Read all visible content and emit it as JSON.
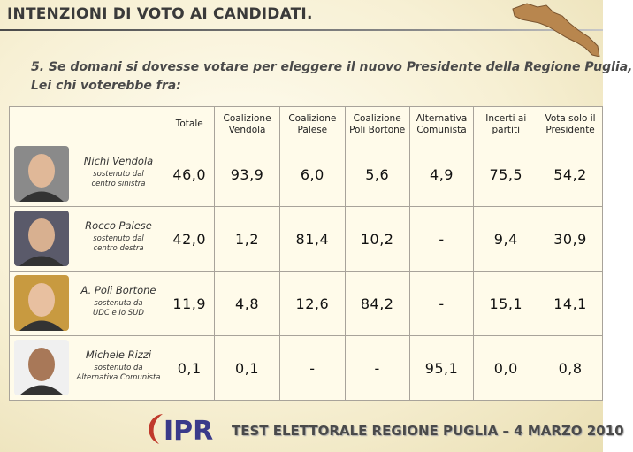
{
  "header": {
    "title": "INTENZIONI DI VOTO AI CANDIDATI."
  },
  "question": [
    "5. Se domani si dovesse votare per eleggere il nuovo Presidente della Regione Puglia,",
    "Lei chi voterebbe fra:"
  ],
  "table": {
    "columns": [
      "Totale",
      "Coalizione Vendola",
      "Coalizione Palese",
      "Coalizione Poli Bortone",
      "Alternativa Comunista",
      "Incerti ai partiti",
      "Vota solo il Presidente"
    ],
    "rows": [
      {
        "name": "Nichi Vendola",
        "subtitle": [
          "sostenuto dal",
          "centro sinistra"
        ],
        "values": [
          "46,0",
          "93,9",
          "6,0",
          "5,6",
          "4,9",
          "75,5",
          "54,2"
        ]
      },
      {
        "name": "Rocco Palese",
        "subtitle": [
          "sostenuto dal",
          "centro destra"
        ],
        "values": [
          "42,0",
          "1,2",
          "81,4",
          "10,2",
          "-",
          "9,4",
          "30,9"
        ]
      },
      {
        "name": "A. Poli Bortone",
        "subtitle": [
          "sostenuta da",
          "UDC e Io SUD"
        ],
        "values": [
          "11,9",
          "4,8",
          "12,6",
          "84,2",
          "-",
          "15,1",
          "14,1"
        ]
      },
      {
        "name": "Michele Rizzi",
        "subtitle": [
          "sostenuto da",
          "Alternativa Comunista"
        ],
        "values": [
          "0,1",
          "0,1",
          "-",
          "-",
          "95,1",
          "0,0",
          "0,8"
        ]
      }
    ]
  },
  "logo": "IPR",
  "footer": "TEST ELETTORALE REGIONE PUGLIA – 4 MARZO 2010"
}
